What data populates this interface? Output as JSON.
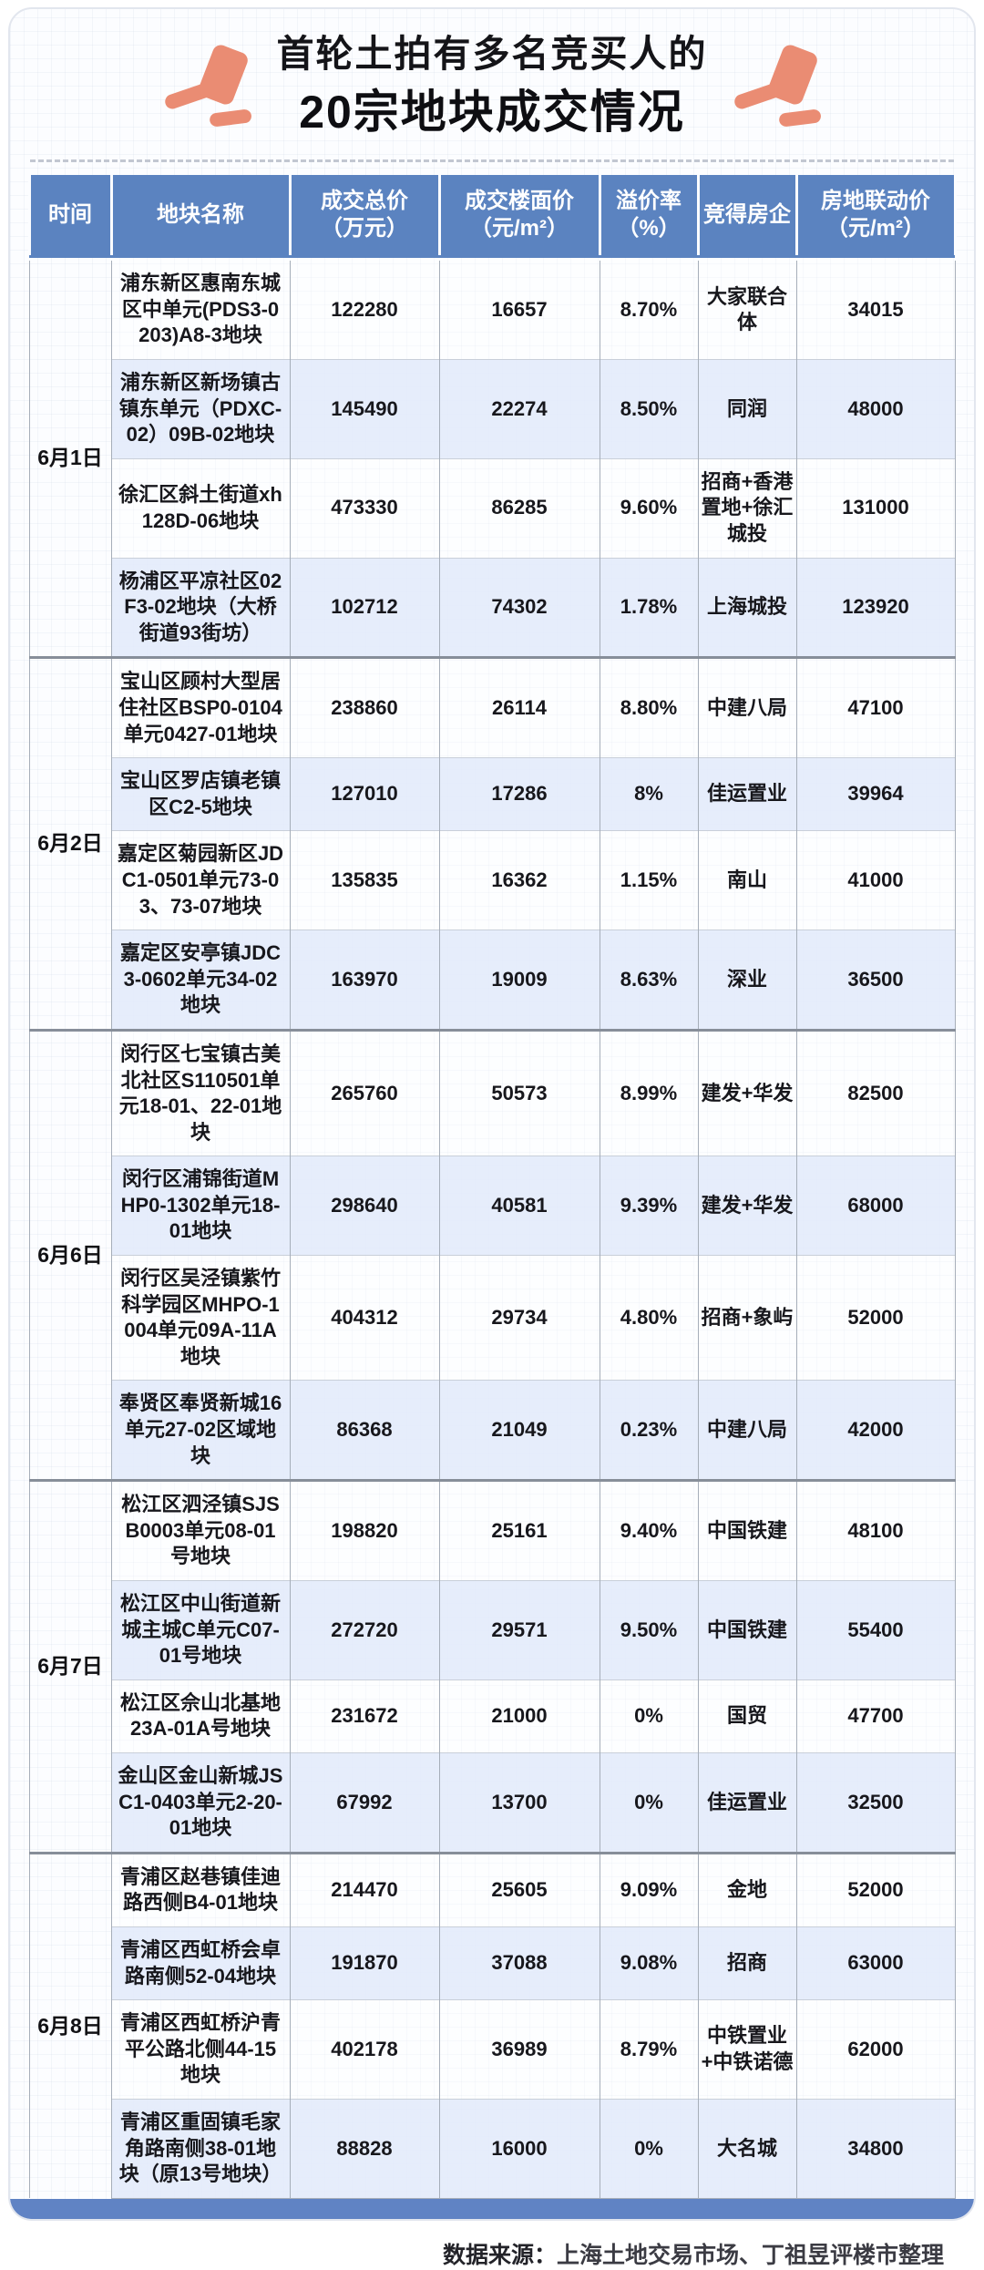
{
  "title": {
    "line1": "首轮土拍有多名竞买人的",
    "line2": "20宗地块成交情况"
  },
  "icons": {
    "title_left": "gavel-icon",
    "title_right": "gavel-icon"
  },
  "colors": {
    "header_bg": "#5b83c0",
    "stripe_blue": "#e6edf9",
    "accent_gavel": "#ea8c73",
    "bottom_bar": "#6083c4",
    "group_divider": "#878e99"
  },
  "table": {
    "headers": [
      {
        "label": "时间",
        "unit": ""
      },
      {
        "label": "地块名称",
        "unit": ""
      },
      {
        "label": "成交总价",
        "unit": "（万元）"
      },
      {
        "label": "成交楼面价",
        "unit": "（元/m²）"
      },
      {
        "label": "溢价率",
        "unit": "（%）"
      },
      {
        "label": "竞得房企",
        "unit": ""
      },
      {
        "label": "房地联动价",
        "unit": "（元/m²）"
      }
    ],
    "groups": [
      {
        "date": "6月1日",
        "rows": [
          {
            "name": "浦东新区惠南东城区中单元(PDS3-0203)A8-3地块",
            "total": "122280",
            "floor": "16657",
            "premium": "8.70%",
            "buyer": "大家联合体",
            "linkage": "34015"
          },
          {
            "name": "浦东新区新场镇古镇东单元（PDXC-02）09B-02地块",
            "total": "145490",
            "floor": "22274",
            "premium": "8.50%",
            "buyer": "同润",
            "linkage": "48000"
          },
          {
            "name": "徐汇区斜土街道xh128D-06地块",
            "total": "473330",
            "floor": "86285",
            "premium": "9.60%",
            "buyer": "招商+香港置地+徐汇城投",
            "linkage": "131000"
          },
          {
            "name": "杨浦区平凉社区02F3-02地块（大桥街道93街坊）",
            "total": "102712",
            "floor": "74302",
            "premium": "1.78%",
            "buyer": "上海城投",
            "linkage": "123920"
          }
        ]
      },
      {
        "date": "6月2日",
        "rows": [
          {
            "name": "宝山区顾村大型居住社区BSP0-0104单元0427-01地块",
            "total": "238860",
            "floor": "26114",
            "premium": "8.80%",
            "buyer": "中建八局",
            "linkage": "47100"
          },
          {
            "name": "宝山区罗店镇老镇区C2-5地块",
            "total": "127010",
            "floor": "17286",
            "premium": "8%",
            "buyer": "佳运置业",
            "linkage": "39964"
          },
          {
            "name": "嘉定区菊园新区JDC1-0501单元73-03、73-07地块",
            "total": "135835",
            "floor": "16362",
            "premium": "1.15%",
            "buyer": "南山",
            "linkage": "41000"
          },
          {
            "name": "嘉定区安亭镇JDC3-0602单元34-02地块",
            "total": "163970",
            "floor": "19009",
            "premium": "8.63%",
            "buyer": "深业",
            "linkage": "36500"
          }
        ]
      },
      {
        "date": "6月6日",
        "rows": [
          {
            "name": "闵行区七宝镇古美北社区S110501单元18-01、22-01地块",
            "total": "265760",
            "floor": "50573",
            "premium": "8.99%",
            "buyer": "建发+华发",
            "linkage": "82500"
          },
          {
            "name": "闵行区浦锦街道MHP0-1302单元18-01地块",
            "total": "298640",
            "floor": "40581",
            "premium": "9.39%",
            "buyer": "建发+华发",
            "linkage": "68000"
          },
          {
            "name": "闵行区吴泾镇紫竹科学园区MHPO-1004单元09A-11A地块",
            "total": "404312",
            "floor": "29734",
            "premium": "4.80%",
            "buyer": "招商+象屿",
            "linkage": "52000"
          },
          {
            "name": "奉贤区奉贤新城16单元27-02区域地块",
            "total": "86368",
            "floor": "21049",
            "premium": "0.23%",
            "buyer": "中建八局",
            "linkage": "42000"
          }
        ]
      },
      {
        "date": "6月7日",
        "rows": [
          {
            "name": "松江区泗泾镇SJSB0003单元08-01号地块",
            "total": "198820",
            "floor": "25161",
            "premium": "9.40%",
            "buyer": "中国铁建",
            "linkage": "48100"
          },
          {
            "name": "松江区中山街道新城主城C单元C07-01号地块",
            "total": "272720",
            "floor": "29571",
            "premium": "9.50%",
            "buyer": "中国铁建",
            "linkage": "55400"
          },
          {
            "name": "松江区佘山北基地23A-01A号地块",
            "total": "231672",
            "floor": "21000",
            "premium": "0%",
            "buyer": "国贸",
            "linkage": "47700"
          },
          {
            "name": "金山区金山新城JSC1-0403单元2-20-01地块",
            "total": "67992",
            "floor": "13700",
            "premium": "0%",
            "buyer": "佳运置业",
            "linkage": "32500"
          }
        ]
      },
      {
        "date": "6月8日",
        "rows": [
          {
            "name": "青浦区赵巷镇佳迪路西侧B4-01地块",
            "total": "214470",
            "floor": "25605",
            "premium": "9.09%",
            "buyer": "金地",
            "linkage": "52000"
          },
          {
            "name": "青浦区西虹桥会卓路南侧52-04地块",
            "total": "191870",
            "floor": "37088",
            "premium": "9.08%",
            "buyer": "招商",
            "linkage": "63000"
          },
          {
            "name": "青浦区西虹桥沪青平公路北侧44-15地块",
            "total": "402178",
            "floor": "36989",
            "premium": "8.79%",
            "buyer": "中铁置业+中铁诺德",
            "linkage": "62000"
          },
          {
            "name": "青浦区重固镇毛家角路南侧38-01地块（原13号地块）",
            "total": "88828",
            "floor": "16000",
            "premium": "0%",
            "buyer": "大名城",
            "linkage": "34800"
          }
        ]
      }
    ]
  },
  "footer": {
    "prefix": "数据来源：",
    "text": "上海土地交易市场、丁祖昱评楼市整理"
  },
  "chart_data": {
    "type": "table",
    "title": "首轮土拍有多名竞买人的20宗地块成交情况",
    "columns": [
      "时间",
      "地块名称",
      "成交总价（万元）",
      "成交楼面价（元/m²）",
      "溢价率（%）",
      "竞得房企",
      "房地联动价（元/m²）"
    ],
    "rows": [
      [
        "6月1日",
        "浦东新区惠南东城区中单元(PDS3-0203)A8-3地块",
        122280,
        16657,
        "8.70%",
        "大家联合体",
        34015
      ],
      [
        "6月1日",
        "浦东新区新场镇古镇东单元（PDXC-02）09B-02地块",
        145490,
        22274,
        "8.50%",
        "同润",
        48000
      ],
      [
        "6月1日",
        "徐汇区斜土街道xh128D-06地块",
        473330,
        86285,
        "9.60%",
        "招商+香港置地+徐汇城投",
        131000
      ],
      [
        "6月1日",
        "杨浦区平凉社区02F3-02地块（大桥街道93街坊）",
        102712,
        74302,
        "1.78%",
        "上海城投",
        123920
      ],
      [
        "6月2日",
        "宝山区顾村大型居住社区BSP0-0104单元0427-01地块",
        238860,
        26114,
        "8.80%",
        "中建八局",
        47100
      ],
      [
        "6月2日",
        "宝山区罗店镇老镇区C2-5地块",
        127010,
        17286,
        "8%",
        "佳运置业",
        39964
      ],
      [
        "6月2日",
        "嘉定区菊园新区JDC1-0501单元73-03、73-07地块",
        135835,
        16362,
        "1.15%",
        "南山",
        41000
      ],
      [
        "6月2日",
        "嘉定区安亭镇JDC3-0602单元34-02地块",
        163970,
        19009,
        "8.63%",
        "深业",
        36500
      ],
      [
        "6月6日",
        "闵行区七宝镇古美北社区S110501单元18-01、22-01地块",
        265760,
        50573,
        "8.99%",
        "建发+华发",
        82500
      ],
      [
        "6月6日",
        "闵行区浦锦街道MHP0-1302单元18-01地块",
        298640,
        40581,
        "9.39%",
        "建发+华发",
        68000
      ],
      [
        "6月6日",
        "闵行区吴泾镇紫竹科学园区MHPO-1004单元09A-11A地块",
        404312,
        29734,
        "4.80%",
        "招商+象屿",
        52000
      ],
      [
        "6月6日",
        "奉贤区奉贤新城16单元27-02区域地块",
        86368,
        21049,
        "0.23%",
        "中建八局",
        42000
      ],
      [
        "6月7日",
        "松江区泗泾镇SJSB0003单元08-01号地块",
        198820,
        25161,
        "9.40%",
        "中国铁建",
        48100
      ],
      [
        "6月7日",
        "松江区中山街道新城主城C单元C07-01号地块",
        272720,
        29571,
        "9.50%",
        "中国铁建",
        55400
      ],
      [
        "6月7日",
        "松江区佘山北基地23A-01A号地块",
        231672,
        21000,
        "0%",
        "国贸",
        47700
      ],
      [
        "6月7日",
        "金山区金山新城JSC1-0403单元2-20-01地块",
        67992,
        13700,
        "0%",
        "佳运置业",
        32500
      ],
      [
        "6月8日",
        "青浦区赵巷镇佳迪路西侧B4-01地块",
        214470,
        25605,
        "9.09%",
        "金地",
        52000
      ],
      [
        "6月8日",
        "青浦区西虹桥会卓路南侧52-04地块",
        191870,
        37088,
        "9.08%",
        "招商",
        63000
      ],
      [
        "6月8日",
        "青浦区西虹桥沪青平公路北侧44-15地块",
        402178,
        36989,
        "8.79%",
        "中铁置业+中铁诺德",
        62000
      ],
      [
        "6月8日",
        "青浦区重固镇毛家角路南侧38-01地块（原13号地块）",
        88828,
        16000,
        "0%",
        "大名城",
        34800
      ]
    ]
  }
}
